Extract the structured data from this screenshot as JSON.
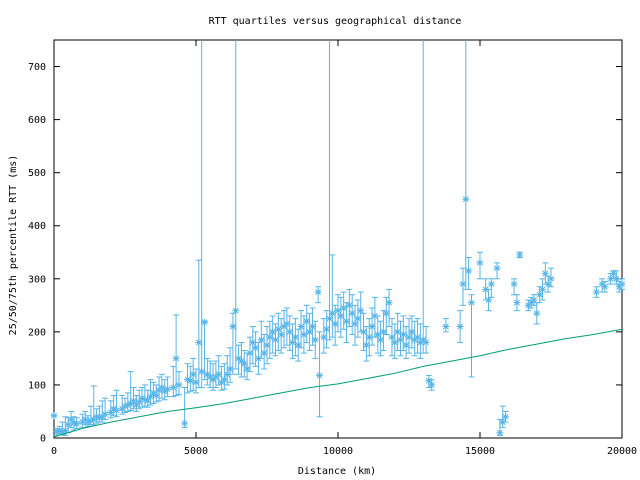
{
  "chart_data": {
    "type": "scatter",
    "title": "RTT quartiles versus geographical distance",
    "xlabel": "Distance (km)",
    "ylabel": "25/50/75th percentile RTT (ms)",
    "xlim": [
      0,
      20000
    ],
    "ylim": [
      0,
      750
    ],
    "xticks": [
      "0",
      "5000",
      "10000",
      "15000",
      "20000"
    ],
    "yticks": [
      "0",
      "100",
      "200",
      "300",
      "400",
      "500",
      "600",
      "700"
    ],
    "grid": false,
    "colors": {
      "points": "#56b4e9",
      "line": "#009e73",
      "axis": "#000000"
    },
    "series": [
      {
        "kind": "errorbars",
        "points": [
          [
            0,
            42,
            42,
            42
          ],
          [
            100,
            12,
            5,
            18
          ],
          [
            200,
            14,
            8,
            22
          ],
          [
            300,
            12,
            6,
            30
          ],
          [
            400,
            14,
            5,
            40
          ],
          [
            500,
            25,
            10,
            38
          ],
          [
            600,
            35,
            20,
            50
          ],
          [
            700,
            28,
            15,
            40
          ],
          [
            800,
            27,
            18,
            38
          ],
          [
            1000,
            30,
            20,
            45
          ],
          [
            1100,
            35,
            25,
            50
          ],
          [
            1200,
            30,
            22,
            42
          ],
          [
            1300,
            33,
            25,
            60
          ],
          [
            1400,
            35,
            25,
            98
          ],
          [
            1500,
            40,
            28,
            55
          ],
          [
            1600,
            38,
            30,
            60
          ],
          [
            1700,
            40,
            30,
            70
          ],
          [
            1800,
            45,
            35,
            75
          ],
          [
            2000,
            48,
            38,
            70
          ],
          [
            2100,
            55,
            42,
            80
          ],
          [
            2200,
            52,
            40,
            90
          ],
          [
            2400,
            55,
            45,
            80
          ],
          [
            2500,
            60,
            48,
            75
          ],
          [
            2600,
            62,
            50,
            85
          ],
          [
            2700,
            65,
            52,
            125
          ],
          [
            2800,
            70,
            55,
            95
          ],
          [
            2900,
            62,
            50,
            80
          ],
          [
            3000,
            68,
            55,
            90
          ],
          [
            3100,
            75,
            58,
            95
          ],
          [
            3200,
            72,
            60,
            100
          ],
          [
            3300,
            70,
            58,
            90
          ],
          [
            3400,
            78,
            62,
            110
          ],
          [
            3500,
            85,
            65,
            105
          ],
          [
            3600,
            80,
            68,
            100
          ],
          [
            3700,
            90,
            70,
            115
          ],
          [
            3800,
            95,
            75,
            120
          ],
          [
            3900,
            88,
            72,
            110
          ],
          [
            4000,
            92,
            78,
            115
          ],
          [
            4200,
            95,
            78,
            135
          ],
          [
            4300,
            150,
            80,
            232
          ],
          [
            4400,
            100,
            82,
            125
          ],
          [
            4600,
            28,
            20,
            95
          ],
          [
            4700,
            110,
            85,
            140
          ],
          [
            4800,
            108,
            88,
            135
          ],
          [
            4900,
            120,
            90,
            150
          ],
          [
            5000,
            105,
            85,
            130
          ],
          [
            5100,
            180,
            95,
            335
          ],
          [
            5200,
            125,
            95,
            750
          ],
          [
            5300,
            218,
            110,
            220
          ],
          [
            5400,
            120,
            100,
            150
          ],
          [
            5500,
            115,
            95,
            145
          ],
          [
            5600,
            110,
            90,
            140
          ],
          [
            5700,
            115,
            95,
            145
          ],
          [
            5800,
            120,
            100,
            155
          ],
          [
            5900,
            105,
            90,
            135
          ],
          [
            6000,
            110,
            92,
            140
          ],
          [
            6100,
            120,
            100,
            155
          ],
          [
            6200,
            130,
            105,
            170
          ],
          [
            6300,
            210,
            120,
            235
          ],
          [
            6400,
            240,
            130,
            750
          ],
          [
            6500,
            150,
            120,
            175
          ],
          [
            6600,
            145,
            115,
            180
          ],
          [
            6700,
            140,
            115,
            165
          ],
          [
            6800,
            130,
            110,
            160
          ],
          [
            6900,
            160,
            125,
            190
          ],
          [
            7000,
            180,
            140,
            210
          ],
          [
            7100,
            170,
            135,
            200
          ],
          [
            7200,
            150,
            120,
            180
          ],
          [
            7300,
            185,
            150,
            220
          ],
          [
            7400,
            160,
            130,
            195
          ],
          [
            7500,
            175,
            140,
            210
          ],
          [
            7600,
            190,
            150,
            220
          ],
          [
            7700,
            200,
            160,
            230
          ],
          [
            7800,
            185,
            155,
            215
          ],
          [
            7900,
            205,
            165,
            235
          ],
          [
            8000,
            195,
            160,
            225
          ],
          [
            8100,
            210,
            170,
            240
          ],
          [
            8200,
            215,
            175,
            245
          ],
          [
            8300,
            200,
            165,
            230
          ],
          [
            8400,
            180,
            150,
            215
          ],
          [
            8500,
            190,
            155,
            225
          ],
          [
            8600,
            175,
            145,
            205
          ],
          [
            8700,
            210,
            170,
            240
          ],
          [
            8800,
            195,
            160,
            230
          ],
          [
            8900,
            220,
            180,
            250
          ],
          [
            9000,
            200,
            165,
            235
          ],
          [
            9100,
            210,
            175,
            245
          ],
          [
            9200,
            185,
            150,
            220
          ],
          [
            9300,
            275,
            255,
            285
          ],
          [
            9350,
            118,
            40,
            200
          ],
          [
            9500,
            190,
            160,
            225
          ],
          [
            9600,
            205,
            170,
            240
          ],
          [
            9700,
            225,
            185,
            750
          ],
          [
            9800,
            235,
            190,
            345
          ],
          [
            9900,
            215,
            175,
            250
          ],
          [
            10000,
            240,
            200,
            270
          ],
          [
            10100,
            230,
            190,
            265
          ],
          [
            10200,
            245,
            205,
            275
          ],
          [
            10300,
            220,
            180,
            255
          ],
          [
            10400,
            250,
            210,
            280
          ],
          [
            10500,
            235,
            195,
            270
          ],
          [
            10600,
            215,
            175,
            250
          ],
          [
            10700,
            225,
            190,
            260
          ],
          [
            10800,
            240,
            200,
            275
          ],
          [
            10900,
            200,
            165,
            235
          ],
          [
            11000,
            175,
            145,
            210
          ],
          [
            11100,
            190,
            155,
            225
          ],
          [
            11200,
            210,
            175,
            245
          ],
          [
            11300,
            230,
            190,
            265
          ],
          [
            11400,
            195,
            160,
            230
          ],
          [
            11500,
            185,
            155,
            220
          ],
          [
            11600,
            200,
            165,
            240
          ],
          [
            11700,
            235,
            195,
            265
          ],
          [
            11800,
            255,
            210,
            280
          ],
          [
            11900,
            190,
            155,
            225
          ],
          [
            12000,
            180,
            150,
            215
          ],
          [
            12100,
            200,
            165,
            235
          ],
          [
            12200,
            185,
            155,
            220
          ],
          [
            12300,
            195,
            165,
            230
          ],
          [
            12400,
            175,
            150,
            210
          ],
          [
            12500,
            190,
            160,
            225
          ],
          [
            12600,
            200,
            170,
            230
          ],
          [
            12700,
            185,
            155,
            220
          ],
          [
            12800,
            190,
            160,
            225
          ],
          [
            12900,
            180,
            150,
            215
          ],
          [
            13000,
            185,
            160,
            750
          ],
          [
            13100,
            180,
            160,
            210
          ],
          [
            13200,
            108,
            95,
            118
          ],
          [
            13300,
            100,
            90,
            110
          ],
          [
            13800,
            210,
            200,
            225
          ],
          [
            14300,
            210,
            180,
            240
          ],
          [
            14400,
            290,
            250,
            320
          ],
          [
            14500,
            450,
            280,
            750
          ],
          [
            14600,
            315,
            280,
            340
          ],
          [
            14700,
            255,
            115,
            270
          ],
          [
            15000,
            330,
            300,
            350
          ],
          [
            15200,
            280,
            260,
            300
          ],
          [
            15300,
            260,
            240,
            280
          ],
          [
            15400,
            290,
            265,
            300
          ],
          [
            15600,
            320,
            300,
            330
          ],
          [
            15700,
            10,
            5,
            35
          ],
          [
            15800,
            30,
            20,
            60
          ],
          [
            15900,
            40,
            30,
            50
          ],
          [
            16200,
            290,
            270,
            300
          ],
          [
            16300,
            255,
            240,
            270
          ],
          [
            16400,
            345,
            340,
            350
          ],
          [
            16700,
            250,
            240,
            260
          ],
          [
            16800,
            255,
            245,
            265
          ],
          [
            16900,
            260,
            250,
            270
          ],
          [
            17000,
            235,
            215,
            255
          ],
          [
            17100,
            270,
            255,
            285
          ],
          [
            17200,
            280,
            260,
            300
          ],
          [
            17300,
            310,
            290,
            330
          ],
          [
            17400,
            290,
            275,
            305
          ],
          [
            17500,
            300,
            285,
            320
          ],
          [
            19100,
            275,
            265,
            285
          ],
          [
            19300,
            290,
            275,
            300
          ],
          [
            19400,
            285,
            275,
            295
          ],
          [
            19600,
            300,
            290,
            310
          ],
          [
            19700,
            310,
            300,
            315
          ],
          [
            19800,
            300,
            290,
            315
          ],
          [
            19900,
            285,
            275,
            295
          ],
          [
            20000,
            290,
            280,
            300
          ]
        ]
      },
      {
        "kind": "line",
        "points": [
          [
            0,
            2
          ],
          [
            1000,
            18
          ],
          [
            2000,
            30
          ],
          [
            3000,
            40
          ],
          [
            4000,
            50
          ],
          [
            5000,
            57
          ],
          [
            6000,
            65
          ],
          [
            7000,
            75
          ],
          [
            8000,
            85
          ],
          [
            9000,
            95
          ],
          [
            10000,
            102
          ],
          [
            11000,
            112
          ],
          [
            12000,
            122
          ],
          [
            13000,
            135
          ],
          [
            14000,
            145
          ],
          [
            15000,
            155
          ],
          [
            16000,
            167
          ],
          [
            17000,
            177
          ],
          [
            18000,
            187
          ],
          [
            19000,
            195
          ],
          [
            20000,
            205
          ]
        ]
      }
    ]
  }
}
